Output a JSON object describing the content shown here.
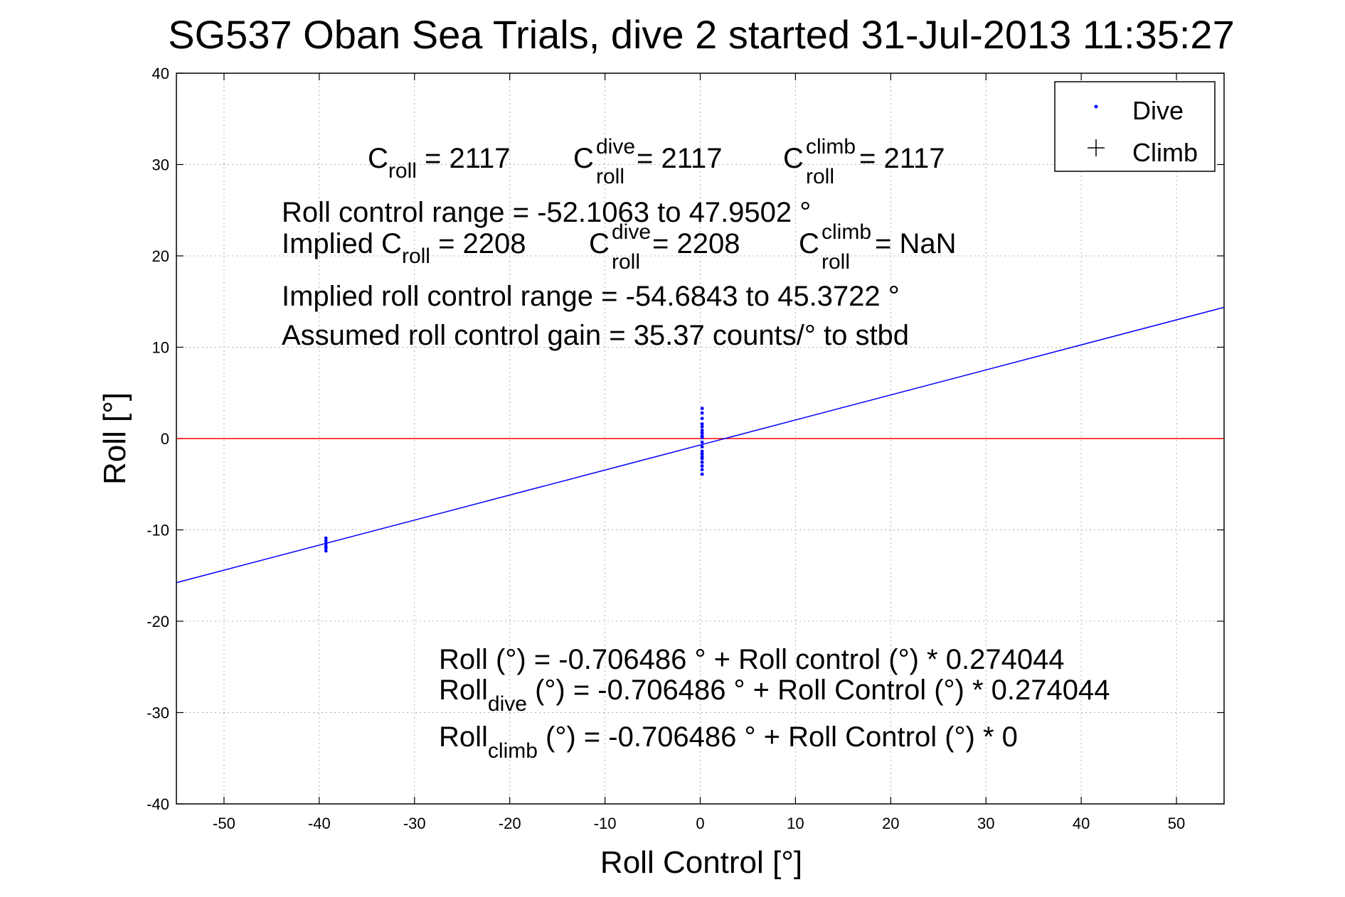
{
  "chart_data": {
    "type": "scatter",
    "title": "SG537 Oban Sea Trials, dive 2 started 31-Jul-2013 11:35:27",
    "xlabel": "Roll Control [°]",
    "ylabel": "Roll [°]",
    "xlim": [
      -55,
      55
    ],
    "ylim": [
      -40,
      40
    ],
    "xticks": [
      -50,
      -40,
      -30,
      -20,
      -10,
      0,
      10,
      20,
      30,
      40,
      50
    ],
    "yticks": [
      -40,
      -30,
      -20,
      -10,
      0,
      10,
      20,
      30,
      40
    ],
    "grid": true,
    "legend": {
      "placement": "top-right",
      "entries": [
        {
          "label": "Dive",
          "marker": "dot",
          "color": "#0000ff"
        },
        {
          "label": "Climb",
          "marker": "plus",
          "color": "#000000"
        }
      ]
    },
    "reference_line": {
      "y": 0,
      "color": "#ff0000"
    },
    "fit_line": {
      "intercept": -0.706486,
      "slope": 0.274044,
      "color": "#0000ff"
    },
    "series": [
      {
        "name": "Dive",
        "color": "#0000ff",
        "points": [
          [
            -39.3,
            -10.9
          ],
          [
            -39.3,
            -11.2
          ],
          [
            -39.3,
            -11.5
          ],
          [
            -39.3,
            -11.8
          ],
          [
            -39.3,
            -12.0
          ],
          [
            -39.3,
            -12.3
          ],
          [
            0.2,
            3.3
          ],
          [
            0.2,
            2.8
          ],
          [
            0.2,
            2.2
          ],
          [
            0.2,
            1.6
          ],
          [
            0.2,
            1.3
          ],
          [
            0.2,
            0.9
          ],
          [
            0.2,
            0.6
          ],
          [
            0.2,
            0.3
          ],
          [
            0.2,
            0.1
          ],
          [
            0.2,
            -0.4
          ],
          [
            0.2,
            -0.9
          ],
          [
            0.2,
            -1.4
          ],
          [
            0.2,
            -1.7
          ],
          [
            0.2,
            -2.0
          ],
          [
            0.2,
            -2.2
          ],
          [
            0.2,
            -2.6
          ],
          [
            0.2,
            -3.0
          ],
          [
            0.2,
            -3.4
          ],
          [
            0.2,
            -3.9
          ]
        ]
      },
      {
        "name": "Climb",
        "color": "#000000",
        "points": []
      }
    ],
    "annotations": {
      "c_roll_label": "C",
      "c_roll_sub": "roll",
      "c_roll_value": " = 2117",
      "c_dive_label": "C",
      "c_dive_sup": "dive",
      "c_dive_sub": "roll",
      "c_dive_value": " = 2117",
      "c_climb_label": "C",
      "c_climb_sup": "climb",
      "c_climb_sub": "roll",
      "c_climb_value": " = 2117",
      "range_text": "Roll control range = -52.1063 to 47.9502 °",
      "implied_prefix": "Implied C",
      "implied_sub": "roll",
      "implied_value": " = 2208",
      "implied_dive_label": "C",
      "implied_dive_sup": "dive",
      "implied_dive_sub": "roll",
      "implied_dive_value": " = 2208",
      "implied_climb_label": "C",
      "implied_climb_sup": "climb",
      "implied_climb_sub": "roll",
      "implied_climb_value": " =  NaN",
      "implied_range_text": "Implied roll control range = -54.6843 to 45.3722 °",
      "gain_text": "Assumed roll control gain = 35.37 counts/° to stbd",
      "eq1_text": "Roll (°) = -0.706486 ° + Roll control (°) * 0.274044",
      "eq2_prefix": "Roll",
      "eq2_sub": "dive",
      "eq2_rest": " (°) = -0.706486 ° + Roll Control (°) * 0.274044",
      "eq3_prefix": "Roll",
      "eq3_sub": "climb",
      "eq3_rest": " (°) = -0.706486 ° + Roll Control (°) * 0"
    }
  }
}
